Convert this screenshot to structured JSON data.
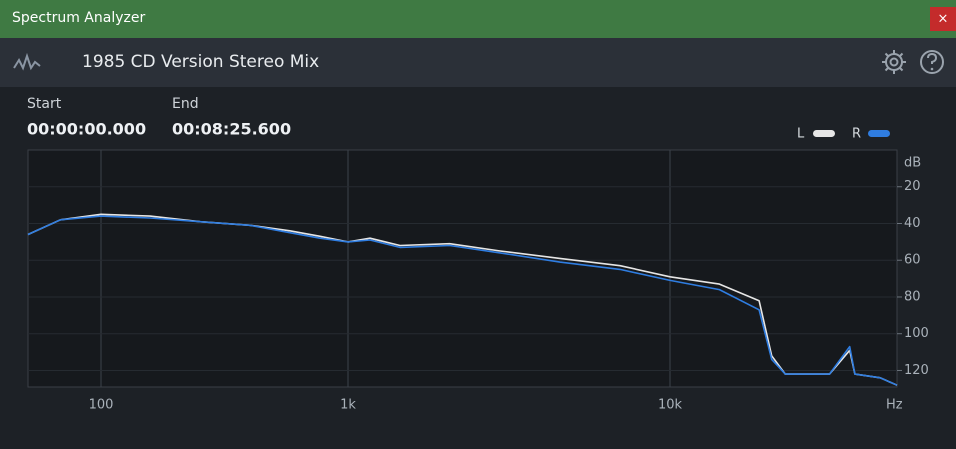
{
  "window": {
    "title": "Spectrum Analyzer",
    "close": "×"
  },
  "header": {
    "title": "1985 CD Version Stereo Mix"
  },
  "range": {
    "start_label": "Start",
    "start": "00:00:00.000",
    "end_label": "End",
    "end": "00:08:25.600"
  },
  "chart_data": {
    "type": "line",
    "x_scale": "log",
    "x": [
      50,
      68,
      100,
      158,
      252,
      401,
      582,
      771,
      1000,
      1170,
      1450,
      2070,
      2970,
      4550,
      7000,
      10000,
      12100,
      14100,
      14800,
      15600,
      18500,
      20000,
      20400,
      22500,
      24000
    ],
    "series": [
      {
        "name": "L",
        "color": "#e6e6e6",
        "values": [
          -46,
          -38,
          -35,
          -36,
          -39,
          -41,
          -44,
          -47,
          -50,
          -48,
          -52,
          -51,
          -55,
          -59,
          -63,
          -69,
          -73,
          -82,
          -112,
          -122,
          -122,
          -109,
          -122,
          -124,
          -128
        ]
      },
      {
        "name": "R",
        "color": "#2f7de1",
        "values": [
          -46,
          -38,
          -36,
          -37,
          -39,
          -41,
          -45,
          -48,
          -50,
          -49,
          -53,
          -52,
          -56,
          -61,
          -65,
          -71,
          -76,
          -87,
          -114,
          -122,
          -122,
          -107,
          -122,
          -124,
          -128
        ]
      }
    ],
    "xlim": [
      50,
      24000
    ],
    "xticks": [
      {
        "value": 100,
        "label": "100"
      },
      {
        "value": 1000,
        "label": "1k"
      },
      {
        "value": 10000,
        "label": "10k"
      }
    ],
    "ylim": [
      -129,
      0
    ],
    "yticks": [
      {
        "value": -20,
        "label": "20"
      },
      {
        "value": -40,
        "label": "40"
      },
      {
        "value": -60,
        "label": "60"
      },
      {
        "value": -80,
        "label": "80"
      },
      {
        "value": -100,
        "label": "100"
      },
      {
        "value": -120,
        "label": "120"
      }
    ],
    "x_label": "Hz",
    "y_label": "dB",
    "grid": true,
    "legend": "top-right"
  }
}
